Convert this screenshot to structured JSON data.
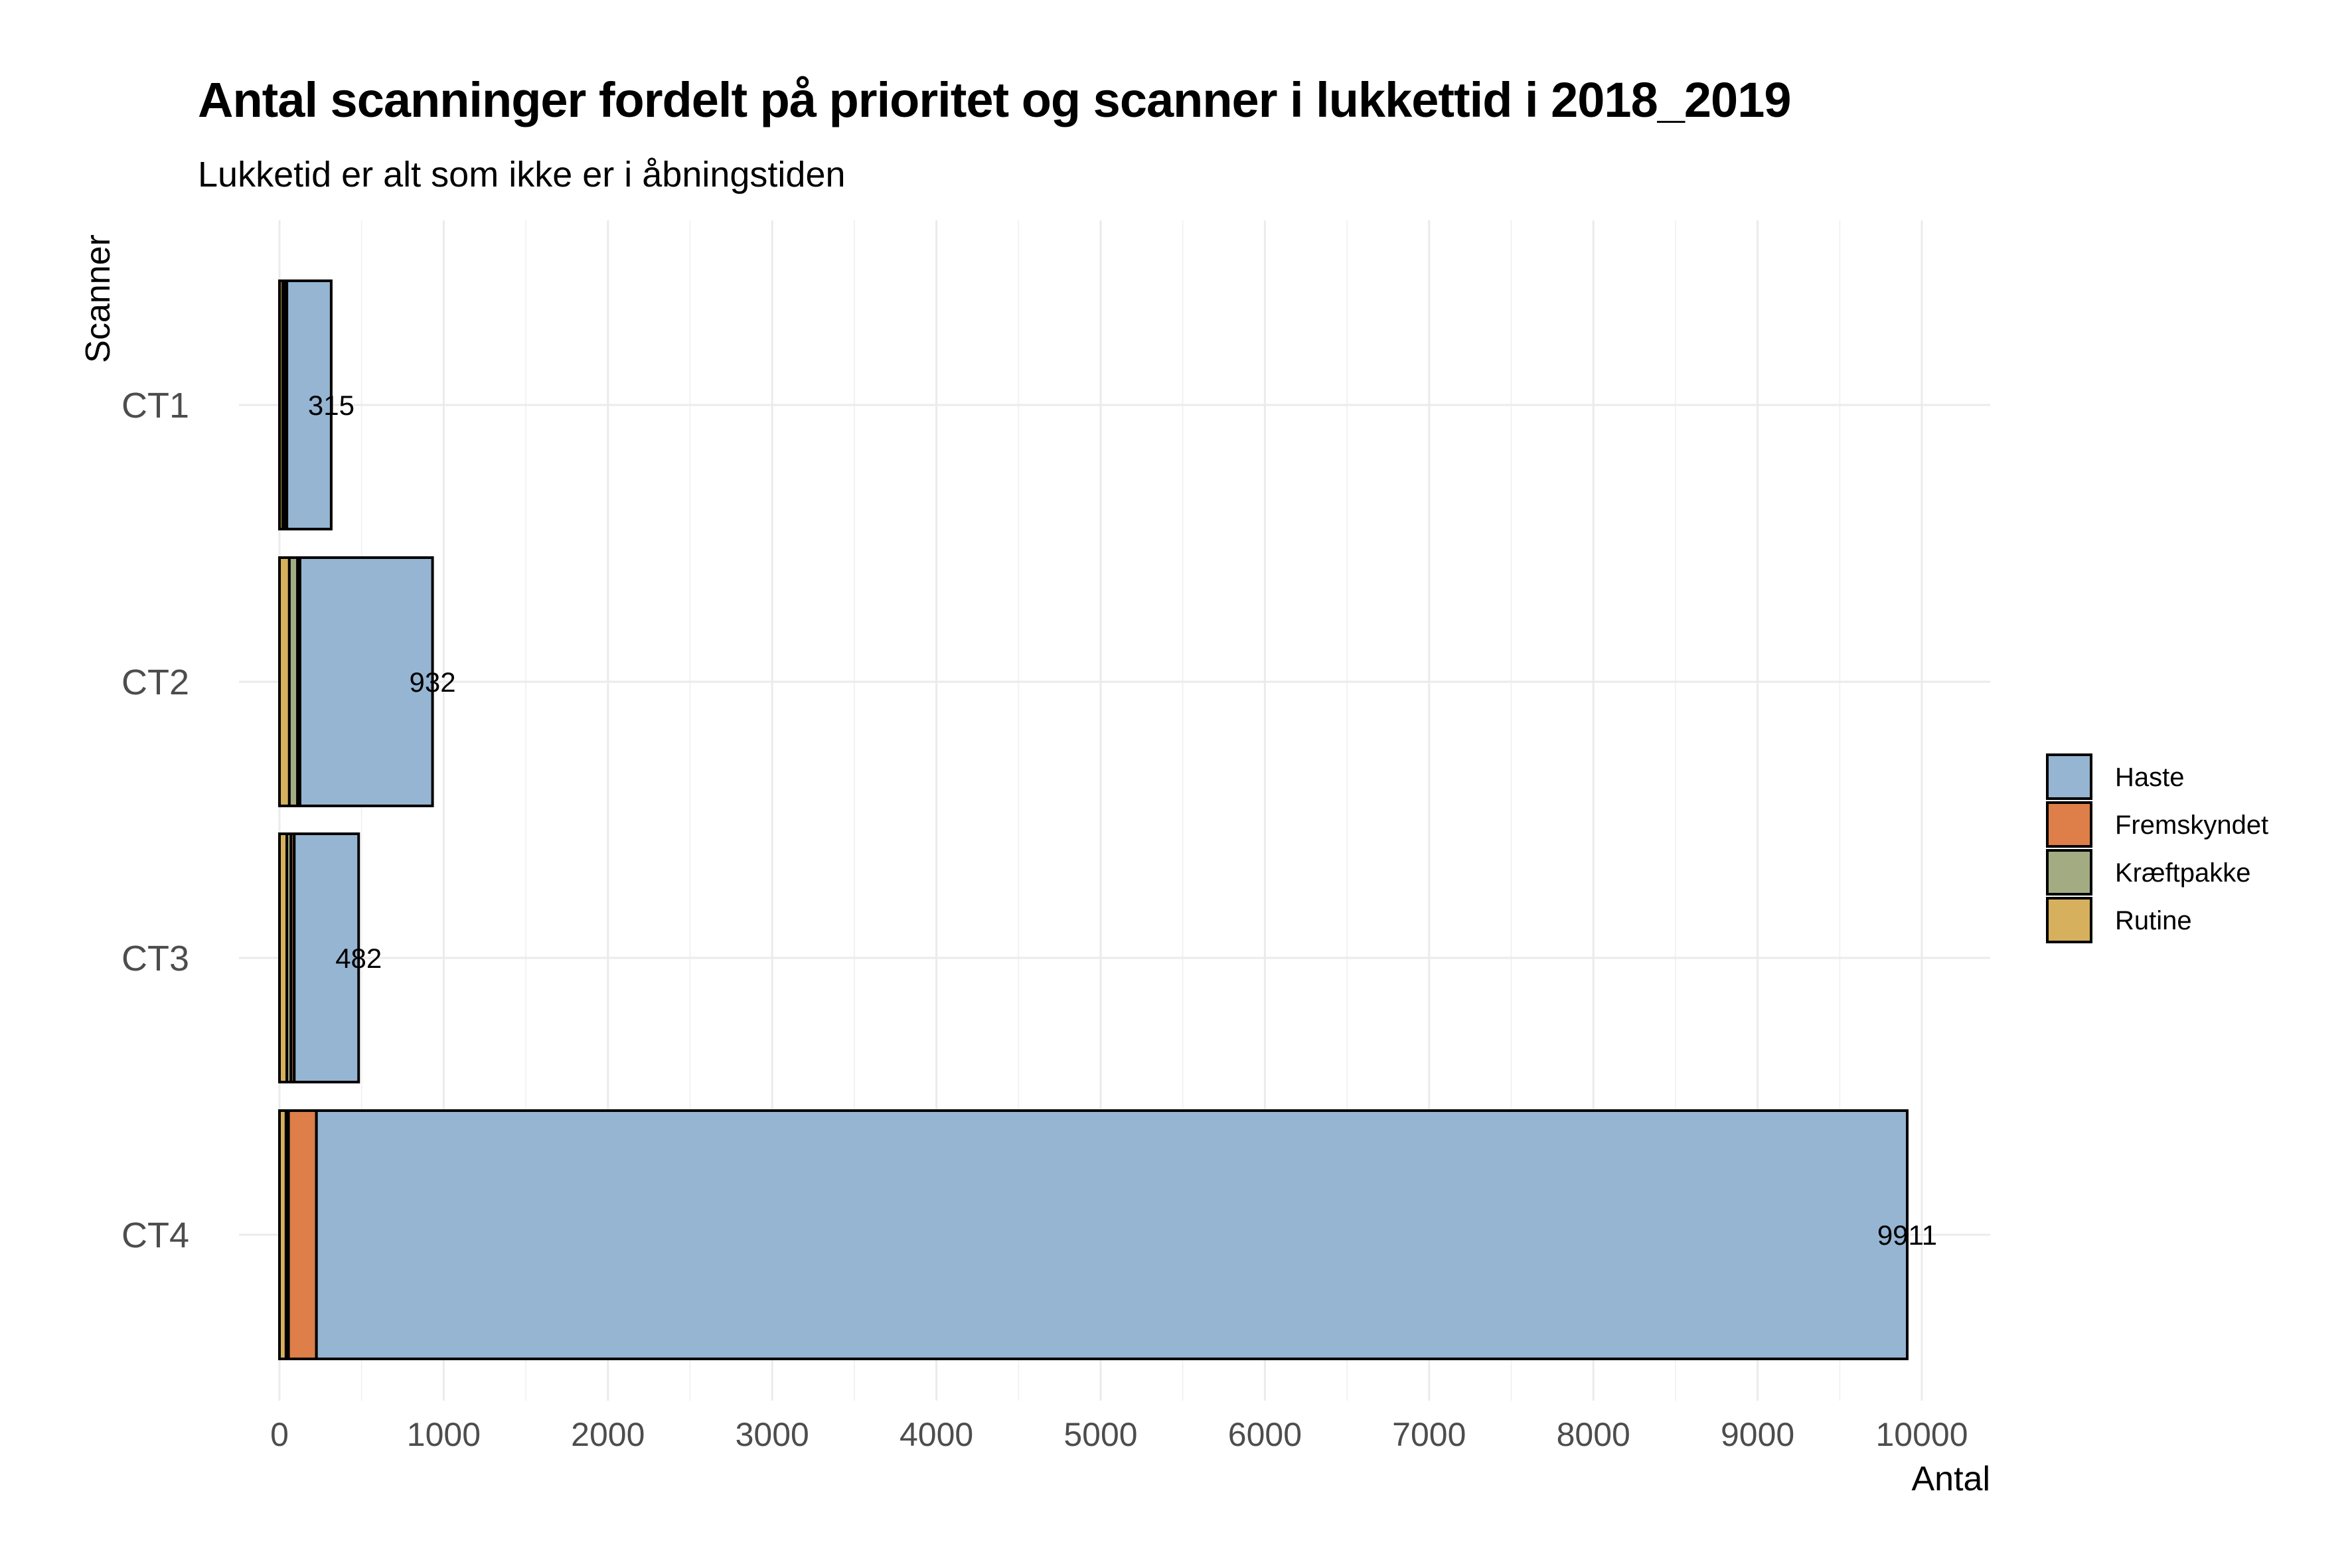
{
  "chart_data": {
    "type": "bar",
    "orientation": "horizontal",
    "stacked": true,
    "title": "Antal scanninger fordelt på prioritet og scanner i lukkettid i 2018_2019",
    "subtitle": "Lukketid er alt som ikke er i åbningstiden",
    "xlabel": "Antal",
    "ylabel": "Scanner",
    "xlim": [
      0,
      10000
    ],
    "xticks": [
      0,
      1000,
      2000,
      3000,
      4000,
      5000,
      6000,
      7000,
      8000,
      9000,
      10000
    ],
    "grid": true,
    "legend_position": "right",
    "categories": [
      "CT1",
      "CT2",
      "CT3",
      "CT4"
    ],
    "series": [
      {
        "name": "Rutine",
        "color": "#D6B05C",
        "values": [
          20,
          60,
          45,
          40
        ]
      },
      {
        "name": "Kræftpakke",
        "color": "#A3AB83",
        "values": [
          10,
          50,
          25,
          15
        ]
      },
      {
        "name": "Fremskyndet",
        "color": "#DE7E48",
        "values": [
          15,
          15,
          20,
          170
        ]
      },
      {
        "name": "Haste",
        "color": "#95B5D2",
        "values": [
          270,
          807,
          392,
          9686
        ]
      }
    ],
    "totals": [
      315,
      932,
      482,
      9911
    ],
    "legend_order": [
      "Haste",
      "Fremskyndet",
      "Kræftpakke",
      "Rutine"
    ]
  }
}
